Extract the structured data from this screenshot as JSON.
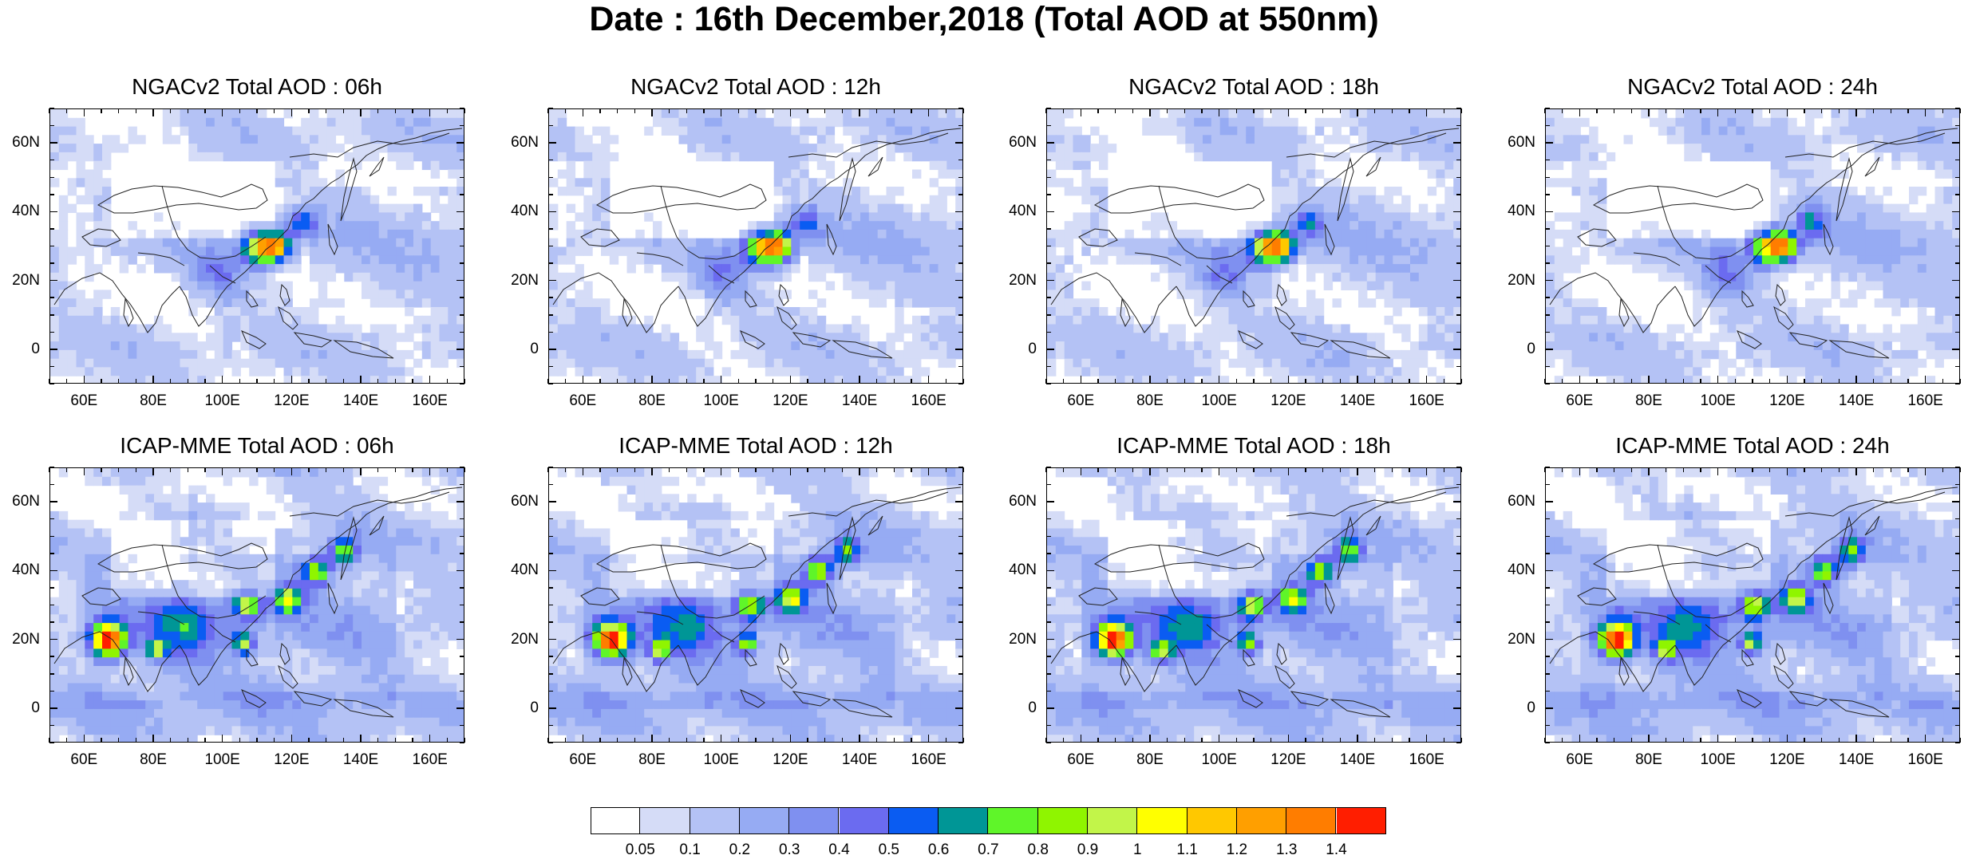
{
  "title": "Date : 16th December,2018 (Total AOD at 550nm)",
  "chart_data": {
    "type": "heatmap",
    "panels": [
      {
        "title": "NGACv2 Total AOD : 06h",
        "model": "ngac",
        "hour": 6
      },
      {
        "title": "NGACv2 Total AOD : 12h",
        "model": "ngac",
        "hour": 12
      },
      {
        "title": "NGACv2 Total AOD : 18h",
        "model": "ngac",
        "hour": 18
      },
      {
        "title": "NGACv2 Total AOD : 24h",
        "model": "ngac",
        "hour": 24
      },
      {
        "title": "ICAP-MME Total AOD : 06h",
        "model": "icap",
        "hour": 6
      },
      {
        "title": "ICAP-MME Total AOD : 12h",
        "model": "icap",
        "hour": 12
      },
      {
        "title": "ICAP-MME Total AOD : 18h",
        "model": "icap",
        "hour": 18
      },
      {
        "title": "ICAP-MME Total AOD : 24h",
        "model": "icap",
        "hour": 24
      }
    ],
    "x_range": [
      50,
      170
    ],
    "y_range": [
      -10,
      70
    ],
    "x_ticks": [
      60,
      80,
      100,
      120,
      140,
      160
    ],
    "x_tick_labels": [
      "60E",
      "80E",
      "100E",
      "120E",
      "140E",
      "160E"
    ],
    "y_ticks": [
      0,
      20,
      40,
      60
    ],
    "y_tick_labels": [
      "0",
      "20N",
      "40N",
      "60N"
    ],
    "hotspots": {
      "ngac": [
        {
          "lon": 112,
          "lat": 30,
          "peak": 1.0,
          "spread": 5
        },
        {
          "lon": 117,
          "lat": 30,
          "peak": 0.9,
          "spread": 4
        },
        {
          "lon": 124,
          "lat": 37,
          "peak": 0.5,
          "spread": 4
        },
        {
          "lon": 100,
          "lat": 22,
          "peak": 0.3,
          "spread": 8
        }
      ],
      "icap": [
        {
          "lon": 68,
          "lat": 20,
          "peak": 1.4,
          "spread": 5
        },
        {
          "lon": 82,
          "lat": 17,
          "peak": 0.7,
          "spread": 3
        },
        {
          "lon": 108,
          "lat": 30,
          "peak": 0.8,
          "spread": 4
        },
        {
          "lon": 120,
          "lat": 32,
          "peak": 0.8,
          "spread": 4
        },
        {
          "lon": 128,
          "lat": 40,
          "peak": 0.8,
          "spread": 4
        },
        {
          "lon": 136,
          "lat": 46,
          "peak": 0.7,
          "spread": 4
        },
        {
          "lon": 107,
          "lat": 19,
          "peak": 0.8,
          "spread": 3
        },
        {
          "lon": 90,
          "lat": 25,
          "peak": 0.4,
          "spread": 10
        }
      ]
    },
    "colorbar": {
      "levels": [
        "0.05",
        "0.1",
        "0.2",
        "0.3",
        "0.4",
        "0.5",
        "0.6",
        "0.7",
        "0.8",
        "0.9",
        "1",
        "1.1",
        "1.2",
        "1.3",
        "1.4"
      ],
      "colors": [
        "#ffffff",
        "#d5dcf7",
        "#b4c2f5",
        "#96abf3",
        "#7f90f0",
        "#6b6bf0",
        "#0a5cf2",
        "#009696",
        "#5ff529",
        "#8ff500",
        "#c2f549",
        "#ffff00",
        "#ffc800",
        "#ff9f00",
        "#ff7d00",
        "#ff1e00"
      ]
    }
  }
}
